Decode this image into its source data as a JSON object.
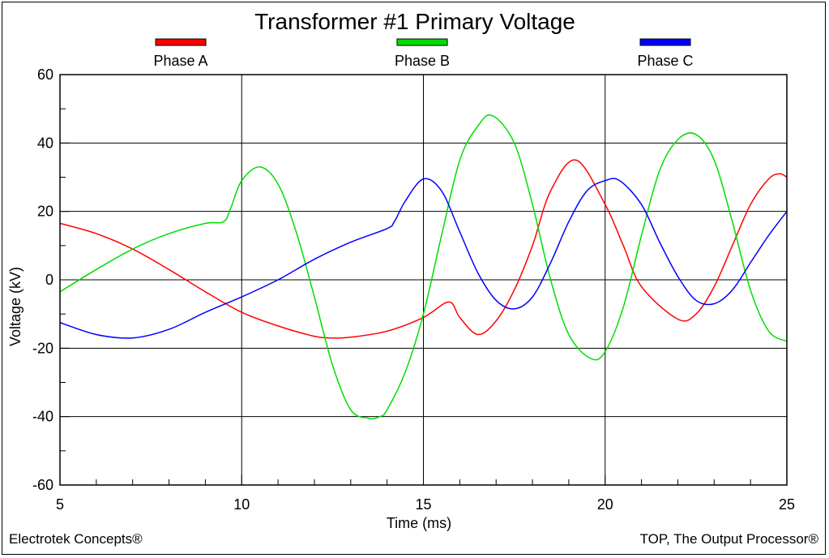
{
  "footer": {
    "left": "Electrotek Concepts®",
    "right": "TOP, The Output Processor®"
  },
  "chart_data": {
    "type": "line",
    "title": "Transformer #1 Primary Voltage",
    "xlabel": "Time (ms)",
    "ylabel": "Voltage (kV)",
    "xlim": [
      5,
      25
    ],
    "ylim": [
      -60,
      60
    ],
    "xticks": [
      5,
      10,
      15,
      20,
      25
    ],
    "yticks": [
      -60,
      -40,
      -20,
      0,
      20,
      40,
      60
    ],
    "grid": true,
    "legend_position": "top",
    "series": [
      {
        "name": "Phase A",
        "color": "#ff0000",
        "x": [
          5,
          6,
          7,
          8,
          9,
          10,
          11,
          12,
          12.5,
          13,
          14,
          15,
          15.7,
          16.0,
          16.5,
          17.0,
          17.5,
          18.0,
          18.5,
          19.2,
          20.0,
          20.5,
          21.0,
          22.0,
          22.5,
          23.0,
          23.5,
          24.0,
          24.5,
          24.8,
          25.0
        ],
        "y": [
          16.5,
          13.5,
          9,
          3,
          -3.5,
          -9.5,
          -13.5,
          -16.5,
          -17,
          -16.8,
          -15,
          -11,
          -6.5,
          -11,
          -16,
          -12,
          -3,
          10,
          26,
          35,
          22,
          10,
          -2,
          -11.5,
          -10,
          -2,
          10,
          22,
          29.5,
          31,
          30
        ]
      },
      {
        "name": "Phase B",
        "color": "#00dd00",
        "x": [
          5,
          6,
          7,
          8,
          9,
          9.5,
          9.7,
          10.0,
          10.5,
          11.0,
          11.5,
          12.0,
          12.5,
          13.0,
          13.5,
          13.8,
          14.0,
          14.5,
          15.0,
          15.5,
          16.0,
          16.5,
          16.9,
          17.5,
          18.0,
          18.5,
          19.0,
          19.6,
          20.0,
          20.5,
          21.0,
          21.5,
          22.0,
          22.5,
          23.0,
          23.5,
          24.0,
          24.5,
          25.0
        ],
        "y": [
          -3.5,
          3,
          9,
          13.5,
          16.5,
          17,
          21,
          29,
          33,
          28,
          14,
          -5,
          -25,
          -38,
          -40.5,
          -40,
          -38,
          -27,
          -10,
          13,
          35,
          45,
          48,
          40,
          22,
          0,
          -16,
          -23,
          -21,
          -8,
          13,
          32,
          41,
          42.5,
          35,
          17,
          -3,
          -15,
          -18
        ]
      },
      {
        "name": "Phase C",
        "color": "#0000ff",
        "x": [
          5,
          6,
          7,
          8,
          9,
          10,
          11,
          12,
          13,
          14.0,
          14.2,
          14.5,
          15.0,
          15.5,
          16.0,
          16.5,
          17.0,
          17.5,
          18.0,
          18.5,
          19.0,
          19.5,
          20.0,
          20.4,
          21.0,
          21.5,
          22.0,
          22.5,
          23.0,
          23.5,
          24.0,
          24.5,
          25.0
        ],
        "y": [
          -12.5,
          -16,
          -17,
          -14.5,
          -9.5,
          -5,
          0,
          6,
          11,
          15,
          17,
          23,
          29.5,
          26,
          14,
          2,
          -6,
          -8.5,
          -5,
          5,
          17,
          26,
          29,
          29,
          22,
          11,
          1,
          -6,
          -7,
          -3,
          5,
          13,
          20
        ]
      }
    ]
  }
}
